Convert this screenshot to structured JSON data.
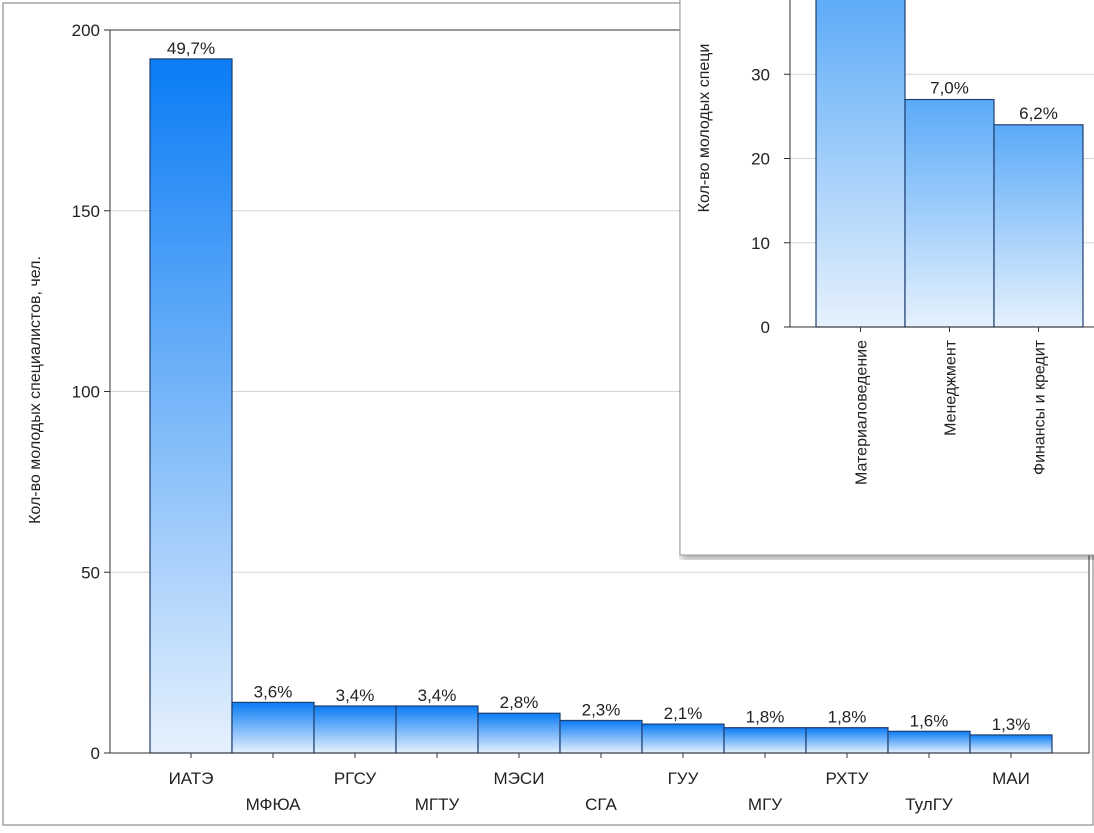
{
  "chart_data": [
    {
      "type": "bar",
      "ylabel": "Кол-во молодых специалистов, чел.",
      "ylim": [
        0,
        200
      ],
      "yticks": [
        0,
        50,
        100,
        150,
        200
      ],
      "grid": true,
      "categories": [
        "ИАТЭ",
        "МФЮА",
        "РГСУ",
        "МГТУ",
        "МЭСИ",
        "СГА",
        "ГУУ",
        "МГУ",
        "РХТУ",
        "ТулГУ",
        "МАИ"
      ],
      "values": [
        192,
        14,
        13,
        13,
        11,
        9,
        8,
        7,
        7,
        6,
        5
      ],
      "data_labels": [
        "49,7%",
        "3,6%",
        "3,4%",
        "3,4%",
        "2,8%",
        "2,3%",
        "2,1%",
        "1,8%",
        "1,8%",
        "1,6%",
        "1,3%"
      ],
      "bar_color_top": "#0a7cf5",
      "bar_color_bottom": "#e6f1fd"
    },
    {
      "type": "bar",
      "ylabel": "Кол-во молодых специ",
      "ylim": [
        0,
        40
      ],
      "yticks": [
        0,
        10,
        20,
        30
      ],
      "grid": true,
      "categories": [
        "Материаловедение",
        "Менеджмент",
        "Финансы и кредит"
      ],
      "values": [
        40,
        27,
        24
      ],
      "data_labels": [
        "",
        "7,0%",
        "6,2%"
      ],
      "bar_color_top": "#5aaaf8",
      "bar_color_bottom": "#e6f1fd"
    }
  ]
}
